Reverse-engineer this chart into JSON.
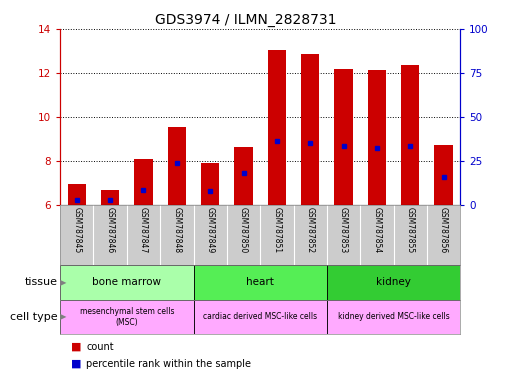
{
  "title": "GDS3974 / ILMN_2828731",
  "samples": [
    "GSM787845",
    "GSM787846",
    "GSM787847",
    "GSM787848",
    "GSM787849",
    "GSM787850",
    "GSM787851",
    "GSM787852",
    "GSM787853",
    "GSM787854",
    "GSM787855",
    "GSM787856"
  ],
  "count_values": [
    6.95,
    6.7,
    8.1,
    9.55,
    7.9,
    8.65,
    13.05,
    12.85,
    12.2,
    12.15,
    12.35,
    8.75
  ],
  "percentile_values": [
    6.25,
    6.25,
    6.7,
    7.9,
    6.65,
    7.45,
    8.9,
    8.85,
    8.7,
    8.6,
    8.7,
    7.3
  ],
  "ylim_left": [
    6,
    14
  ],
  "ylim_right": [
    0,
    100
  ],
  "yticks_left": [
    6,
    8,
    10,
    12,
    14
  ],
  "yticks_right": [
    0,
    25,
    50,
    75,
    100
  ],
  "bar_color": "#cc0000",
  "percentile_color": "#0000cc",
  "bar_width": 0.55,
  "tissue_colors": [
    "#aaffaa",
    "#55ee55",
    "#33cc33"
  ],
  "cell_type_colors": [
    "#ffaaff",
    "#ffaaff",
    "#ffaaff"
  ],
  "tissues": [
    {
      "label": "bone marrow",
      "start": 0,
      "end": 3
    },
    {
      "label": "heart",
      "start": 4,
      "end": 7
    },
    {
      "label": "kidney",
      "start": 8,
      "end": 11
    }
  ],
  "cell_types": [
    {
      "label": "mesenchymal stem cells\n(MSC)",
      "start": 0,
      "end": 3
    },
    {
      "label": "cardiac derived MSC-like cells",
      "start": 4,
      "end": 7
    },
    {
      "label": "kidney derived MSC-like cells",
      "start": 8,
      "end": 11
    }
  ],
  "tissue_label": "tissue",
  "celltype_label": "cell type",
  "legend_count": "count",
  "legend_percentile": "percentile rank within the sample",
  "ylabel_left_color": "#cc0000",
  "ylabel_right_color": "#0000cc",
  "sample_bg_color": "#cccccc",
  "sample_sep_color": "#ffffff"
}
